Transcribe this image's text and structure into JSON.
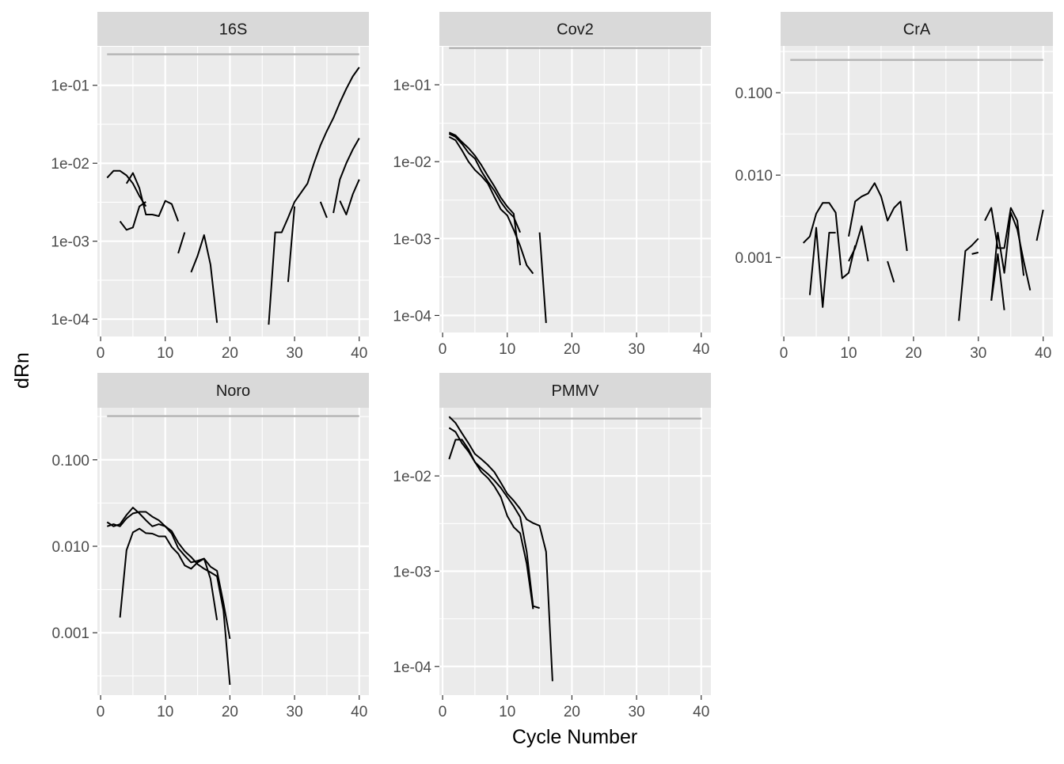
{
  "colors": {
    "panel_background": "#EBEBEB",
    "strip_background": "#D9D9D9",
    "grid_line": "#FFFFFF",
    "data_line": "#000000",
    "threshold_line": "#B3B3B3",
    "tick_text": "#4D4D4D"
  },
  "chart_data": {
    "type": "line",
    "xlabel": "Cycle Number",
    "ylabel": "dRn",
    "y_scale": "log10",
    "grid": true,
    "facets": [
      {
        "title": "16S",
        "xlim": [
          -0.5,
          41.5
        ],
        "xticks": [
          0,
          10,
          20,
          30,
          40
        ],
        "xtick_labels": [
          "0",
          "10",
          "20",
          "30",
          "40"
        ],
        "ylim": [
          6e-05,
          0.32
        ],
        "yticks": [
          0.0001,
          0.001,
          0.01,
          0.1
        ],
        "ytick_labels": [
          "1e-04",
          "1e-03",
          "1e-02",
          "1e-01"
        ],
        "threshold": {
          "x": [
            1,
            40
          ],
          "y": 0.25
        },
        "series": [
          {
            "x": [
              1,
              2,
              3,
              4,
              5,
              6,
              7
            ],
            "y": [
              0.0065,
              0.008,
              0.008,
              0.007,
              0.0055,
              0.0038,
              0.0028
            ]
          },
          {
            "x": [
              4,
              5,
              6,
              7,
              8,
              9,
              10,
              11,
              12
            ],
            "y": [
              0.0055,
              0.0075,
              0.0048,
              0.0022,
              0.0022,
              0.0021,
              0.0033,
              0.003,
              0.0018
            ]
          },
          {
            "x": [
              3,
              4,
              5,
              6,
              7
            ],
            "y": [
              0.0018,
              0.0014,
              0.0015,
              0.0028,
              0.0032
            ]
          },
          {
            "x": [
              12,
              13
            ],
            "y": [
              0.0007,
              0.0013
            ]
          },
          {
            "x": [
              14,
              15,
              16,
              17,
              18
            ],
            "y": [
              0.0004,
              0.00065,
              0.0012,
              0.0005,
              9e-05
            ]
          },
          {
            "x": [
              26,
              27,
              28,
              29,
              30,
              32,
              33,
              34,
              35,
              36,
              37,
              38,
              39,
              40
            ],
            "y": [
              8.5e-05,
              0.0013,
              0.0013,
              0.002,
              0.0032,
              0.0055,
              0.01,
              0.017,
              0.026,
              0.038,
              0.06,
              0.09,
              0.13,
              0.17
            ]
          },
          {
            "x": [
              29,
              30
            ],
            "y": [
              0.0003,
              0.0028
            ]
          },
          {
            "x": [
              34,
              35
            ],
            "y": [
              0.0032,
              0.002
            ]
          },
          {
            "x": [
              36,
              37,
              38,
              39,
              40
            ],
            "y": [
              0.0023,
              0.0062,
              0.01,
              0.015,
              0.021
            ]
          },
          {
            "x": [
              37,
              38,
              39,
              40
            ],
            "y": [
              0.0033,
              0.0022,
              0.004,
              0.0062
            ]
          }
        ]
      },
      {
        "title": "Cov2",
        "xlim": [
          -0.5,
          41.5
        ],
        "xticks": [
          0,
          10,
          20,
          30,
          40
        ],
        "xtick_labels": [
          "0",
          "10",
          "20",
          "30",
          "40"
        ],
        "ylim": [
          6e-05,
          0.32
        ],
        "yticks": [
          0.0001,
          0.001,
          0.01,
          0.1
        ],
        "ytick_labels": [
          "1e-04",
          "1e-03",
          "1e-02",
          "1e-01"
        ],
        "threshold": {
          "x": [
            1,
            40
          ],
          "y": 0.3
        },
        "series": [
          {
            "x": [
              1,
              2,
              3,
              4,
              5,
              6,
              7,
              8,
              9,
              10,
              11,
              12
            ],
            "y": [
              0.023,
              0.021,
              0.017,
              0.013,
              0.011,
              0.0075,
              0.0055,
              0.0042,
              0.003,
              0.0023,
              0.0019,
              0.0012
            ]
          },
          {
            "x": [
              1,
              2,
              3,
              4,
              5,
              6,
              7,
              8,
              9,
              10,
              11,
              12,
              13,
              14
            ],
            "y": [
              0.021,
              0.019,
              0.014,
              0.01,
              0.0078,
              0.0065,
              0.0052,
              0.0035,
              0.0024,
              0.002,
              0.0013,
              0.0008,
              0.00045,
              0.00035
            ]
          },
          {
            "x": [
              1,
              2,
              3,
              4,
              5,
              6,
              7,
              8,
              9,
              10,
              11,
              12
            ],
            "y": [
              0.024,
              0.022,
              0.018,
              0.015,
              0.012,
              0.009,
              0.0065,
              0.0048,
              0.0034,
              0.0026,
              0.0021,
              0.00045
            ]
          },
          {
            "x": [
              15,
              16
            ],
            "y": [
              0.0012,
              8e-05
            ]
          }
        ]
      },
      {
        "title": "CrA",
        "xlim": [
          -0.5,
          41.5
        ],
        "xticks": [
          0,
          10,
          20,
          30,
          40
        ],
        "xtick_labels": [
          "0",
          "10",
          "20",
          "30",
          "40"
        ],
        "ylim": [
          0.00011,
          0.37
        ],
        "yticks": [
          0.001,
          0.01,
          0.1
        ],
        "ytick_labels": [
          "0.001",
          "0.010",
          "0.100"
        ],
        "threshold": {
          "x": [
            1,
            40
          ],
          "y": 0.25
        },
        "series": [
          {
            "x": [
              3,
              4,
              5,
              6,
              7,
              8,
              9,
              10,
              11
            ],
            "y": [
              0.0015,
              0.0018,
              0.0034,
              0.0046,
              0.0046,
              0.0035,
              0.00056,
              0.00065,
              0.0014
            ]
          },
          {
            "x": [
              4,
              5,
              6,
              7,
              8
            ],
            "y": [
              0.00035,
              0.0023,
              0.00025,
              0.002,
              0.002
            ]
          },
          {
            "x": [
              10,
              11,
              12,
              13,
              14,
              15,
              16,
              17,
              18,
              19
            ],
            "y": [
              0.0018,
              0.0048,
              0.0055,
              0.006,
              0.008,
              0.0055,
              0.0028,
              0.004,
              0.0048,
              0.0012
            ]
          },
          {
            "x": [
              10,
              11,
              12,
              13
            ],
            "y": [
              0.0009,
              0.0013,
              0.0024,
              0.0009
            ]
          },
          {
            "x": [
              16,
              17
            ],
            "y": [
              0.0009,
              0.0005
            ]
          },
          {
            "x": [
              27,
              28,
              29,
              30
            ],
            "y": [
              0.00017,
              0.0012,
              0.0014,
              0.0017
            ]
          },
          {
            "x": [
              29,
              30
            ],
            "y": [
              0.0011,
              0.00115
            ]
          },
          {
            "x": [
              31,
              32,
              33,
              34,
              35,
              36,
              37
            ],
            "y": [
              0.0028,
              0.004,
              0.0013,
              0.0013,
              0.004,
              0.0028,
              0.0006
            ]
          },
          {
            "x": [
              32,
              33,
              34,
              35,
              36,
              37,
              38
            ],
            "y": [
              0.0003,
              0.002,
              0.00065,
              0.0035,
              0.0022,
              0.0009,
              0.0004
            ]
          },
          {
            "x": [
              32,
              33,
              34
            ],
            "y": [
              0.0003,
              0.0011,
              0.00023
            ]
          },
          {
            "x": [
              39,
              40
            ],
            "y": [
              0.0016,
              0.0038
            ]
          }
        ]
      },
      {
        "title": "Noro",
        "xlim": [
          -0.5,
          41.5
        ],
        "xticks": [
          0,
          10,
          20,
          30,
          40
        ],
        "xtick_labels": [
          "0",
          "10",
          "20",
          "30",
          "40"
        ],
        "ylim": [
          0.00019,
          0.4
        ],
        "yticks": [
          0.001,
          0.01,
          0.1
        ],
        "ytick_labels": [
          "0.001",
          "0.010",
          "0.100"
        ],
        "threshold": {
          "x": [
            1,
            40
          ],
          "y": 0.32
        },
        "series": [
          {
            "x": [
              1,
              2,
              3,
              4,
              5,
              6,
              7,
              8,
              9,
              10,
              11,
              12,
              13,
              14,
              15,
              16,
              17,
              18,
              19,
              20
            ],
            "y": [
              0.019,
              0.017,
              0.018,
              0.023,
              0.028,
              0.024,
              0.02,
              0.017,
              0.018,
              0.017,
              0.014,
              0.0095,
              0.0078,
              0.0065,
              0.0068,
              0.0072,
              0.0058,
              0.0052,
              0.0022,
              0.00085
            ]
          },
          {
            "x": [
              1,
              2,
              3,
              4,
              5,
              6,
              7,
              8,
              9,
              10,
              11,
              12,
              13,
              14,
              15,
              16,
              17,
              18,
              19,
              20
            ],
            "y": [
              0.017,
              0.018,
              0.017,
              0.021,
              0.024,
              0.025,
              0.025,
              0.022,
              0.02,
              0.017,
              0.015,
              0.011,
              0.0088,
              0.0075,
              0.0062,
              0.0055,
              0.005,
              0.0045,
              0.0018,
              0.00025
            ]
          },
          {
            "x": [
              3,
              4,
              5,
              6,
              7,
              8,
              9,
              10,
              11,
              12,
              13,
              14,
              15,
              16,
              17,
              18
            ],
            "y": [
              0.0015,
              0.009,
              0.0145,
              0.016,
              0.0142,
              0.014,
              0.013,
              0.013,
              0.0098,
              0.0082,
              0.006,
              0.0055,
              0.0065,
              0.0072,
              0.0042,
              0.0014
            ]
          }
        ]
      },
      {
        "title": "PMMV",
        "xlim": [
          -0.5,
          41.5
        ],
        "xticks": [
          0,
          10,
          20,
          30,
          40
        ],
        "xtick_labels": [
          "0",
          "10",
          "20",
          "30",
          "40"
        ],
        "ylim": [
          5e-05,
          0.052
        ],
        "yticks": [
          0.0001,
          0.001,
          0.01
        ],
        "ytick_labels": [
          "1e-04",
          "1e-03",
          "1e-02"
        ],
        "threshold": {
          "x": [
            1,
            40
          ],
          "y": 0.04
        },
        "series": [
          {
            "x": [
              1,
              2,
              3,
              4,
              5,
              6,
              7,
              8,
              9,
              10,
              11,
              12,
              13,
              14,
              15,
              16,
              17
            ],
            "y": [
              0.042,
              0.036,
              0.028,
              0.022,
              0.017,
              0.015,
              0.013,
              0.011,
              0.0085,
              0.0065,
              0.0055,
              0.0045,
              0.0035,
              0.0032,
              0.003,
              0.0016,
              7e-05
            ]
          },
          {
            "x": [
              1,
              2,
              3,
              4,
              5,
              6,
              7,
              8,
              9,
              10,
              11,
              12,
              13,
              14,
              15
            ],
            "y": [
              0.032,
              0.029,
              0.022,
              0.018,
              0.014,
              0.012,
              0.0105,
              0.009,
              0.0075,
              0.006,
              0.0048,
              0.0037,
              0.0016,
              0.00043,
              0.00041
            ]
          },
          {
            "x": [
              1,
              2,
              3,
              4,
              5,
              6,
              7,
              8,
              9,
              10,
              11,
              12,
              13,
              14
            ],
            "y": [
              0.015,
              0.024,
              0.024,
              0.019,
              0.014,
              0.011,
              0.0095,
              0.0078,
              0.006,
              0.0038,
              0.0029,
              0.0025,
              0.0012,
              0.0004
            ]
          }
        ]
      }
    ]
  }
}
